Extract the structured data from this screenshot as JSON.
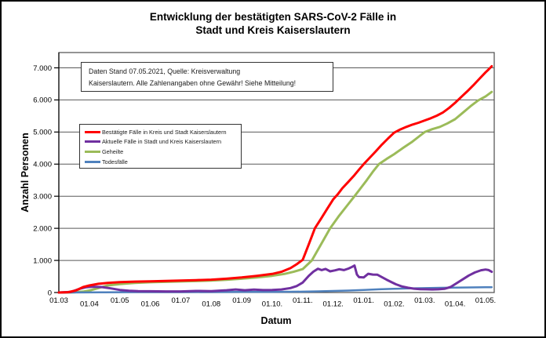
{
  "title": {
    "line1": "Entwicklung der bestätigten SARS-CoV-2 Fälle in",
    "line2": "Stadt und Kreis Kaiserslautern"
  },
  "annotation": {
    "line1": "Daten Stand 07.05.2021, Quelle: Kreisverwaltung",
    "line2": "Kaiserslautern. Alle Zahlenangaben ohne Gewähr! Siehe Mitteilung!"
  },
  "chart_data": {
    "type": "line",
    "title": "Entwicklung der bestätigten SARS-CoV-2 Fälle in Stadt und Kreis Kaiserslautern",
    "xlabel": "Datum",
    "ylabel": "Anzahl Personen",
    "x_unit": "months since 01.03.2020 (0 = 01.03.2020, 14 = 01.05.2021, data ends 07.05.2021)",
    "x_ticks": [
      "01.03",
      "01.04",
      "01.05",
      "01.06",
      "01.07",
      "01.08",
      "01.09",
      "01.10.",
      "01.11.",
      "01.12.",
      "01.01.",
      "01.02.",
      "01.03.",
      "01.04.",
      "01.05."
    ],
    "y_ticks": {
      "labels": [
        "0",
        "1.000",
        "2.000",
        "3.000",
        "4.000",
        "5.000",
        "6.000",
        "7.000"
      ],
      "values": [
        0,
        1000,
        2000,
        3000,
        4000,
        5000,
        6000,
        7000
      ]
    },
    "ylim": [
      0,
      7500
    ],
    "grid": "horizontal",
    "legend_position": "inside-top-left",
    "colors": {
      "grid": "#595959",
      "border": "#4d4d4d",
      "axis": "#000000"
    },
    "series": [
      {
        "key": "bestaetigte-faelle",
        "name": "Bestätigte Fälle in Kreis und Stadt Kaiserslautern",
        "color": "#ff0000",
        "width": 3,
        "z": 4,
        "points": [
          [
            0,
            0
          ],
          [
            0.3,
            10
          ],
          [
            0.55,
            60
          ],
          [
            0.8,
            170
          ],
          [
            1,
            220
          ],
          [
            1.3,
            270
          ],
          [
            1.6,
            300
          ],
          [
            2,
            325
          ],
          [
            2.5,
            340
          ],
          [
            3,
            350
          ],
          [
            3.5,
            362
          ],
          [
            4,
            372
          ],
          [
            4.5,
            385
          ],
          [
            5,
            400
          ],
          [
            5.5,
            430
          ],
          [
            6,
            470
          ],
          [
            6.5,
            520
          ],
          [
            7,
            580
          ],
          [
            7.3,
            645
          ],
          [
            7.6,
            760
          ],
          [
            7.8,
            880
          ],
          [
            8,
            1020
          ],
          [
            8.2,
            1500
          ],
          [
            8.4,
            2000
          ],
          [
            8.6,
            2300
          ],
          [
            8.8,
            2600
          ],
          [
            9,
            2900
          ],
          [
            9.15,
            3060
          ],
          [
            9.3,
            3250
          ],
          [
            9.5,
            3450
          ],
          [
            9.7,
            3660
          ],
          [
            9.85,
            3830
          ],
          [
            10,
            4000
          ],
          [
            10.2,
            4200
          ],
          [
            10.4,
            4400
          ],
          [
            10.6,
            4610
          ],
          [
            10.8,
            4800
          ],
          [
            11,
            4980
          ],
          [
            11.2,
            5080
          ],
          [
            11.4,
            5160
          ],
          [
            11.6,
            5230
          ],
          [
            11.8,
            5290
          ],
          [
            12,
            5360
          ],
          [
            12.2,
            5430
          ],
          [
            12.4,
            5510
          ],
          [
            12.6,
            5610
          ],
          [
            12.8,
            5750
          ],
          [
            13,
            5910
          ],
          [
            13.2,
            6090
          ],
          [
            13.4,
            6270
          ],
          [
            13.6,
            6460
          ],
          [
            13.8,
            6660
          ],
          [
            14,
            6860
          ],
          [
            14.1,
            6950
          ],
          [
            14.2,
            7050
          ]
        ]
      },
      {
        "key": "aktuelle-faelle",
        "name": "Aktuelle Fälle in Stadt und Kreis Kaiserslautern",
        "color": "#7030a0",
        "width": 3,
        "z": 3,
        "points": [
          [
            0,
            0
          ],
          [
            0.4,
            20
          ],
          [
            0.7,
            120
          ],
          [
            0.9,
            165
          ],
          [
            1.1,
            180
          ],
          [
            1.4,
            170
          ],
          [
            1.7,
            130
          ],
          [
            2,
            80
          ],
          [
            2.3,
            55
          ],
          [
            2.6,
            45
          ],
          [
            3,
            40
          ],
          [
            3.5,
            35
          ],
          [
            4,
            35
          ],
          [
            4.5,
            50
          ],
          [
            5,
            45
          ],
          [
            5.5,
            70
          ],
          [
            5.8,
            95
          ],
          [
            6.1,
            70
          ],
          [
            6.4,
            90
          ],
          [
            6.7,
            75
          ],
          [
            7,
            80
          ],
          [
            7.3,
            95
          ],
          [
            7.6,
            140
          ],
          [
            7.8,
            200
          ],
          [
            8,
            310
          ],
          [
            8.2,
            520
          ],
          [
            8.35,
            650
          ],
          [
            8.5,
            740
          ],
          [
            8.62,
            700
          ],
          [
            8.75,
            735
          ],
          [
            8.9,
            660
          ],
          [
            9.05,
            690
          ],
          [
            9.2,
            725
          ],
          [
            9.35,
            700
          ],
          [
            9.5,
            745
          ],
          [
            9.62,
            800
          ],
          [
            9.7,
            840
          ],
          [
            9.78,
            560
          ],
          [
            9.85,
            480
          ],
          [
            10,
            470
          ],
          [
            10.15,
            585
          ],
          [
            10.3,
            560
          ],
          [
            10.45,
            555
          ],
          [
            10.6,
            480
          ],
          [
            10.75,
            400
          ],
          [
            10.9,
            330
          ],
          [
            11.05,
            260
          ],
          [
            11.25,
            190
          ],
          [
            11.45,
            150
          ],
          [
            11.65,
            120
          ],
          [
            11.85,
            105
          ],
          [
            12.05,
            100
          ],
          [
            12.25,
            95
          ],
          [
            12.45,
            100
          ],
          [
            12.65,
            115
          ],
          [
            12.85,
            170
          ],
          [
            13.05,
            290
          ],
          [
            13.25,
            410
          ],
          [
            13.45,
            530
          ],
          [
            13.65,
            625
          ],
          [
            13.85,
            695
          ],
          [
            14,
            715
          ],
          [
            14.1,
            700
          ],
          [
            14.2,
            645
          ]
        ]
      },
      {
        "key": "geheilte",
        "name": "Geheilte",
        "color": "#9bbb59",
        "width": 3,
        "z": 1,
        "points": [
          [
            0,
            0
          ],
          [
            0.5,
            5
          ],
          [
            0.8,
            30
          ],
          [
            1,
            60
          ],
          [
            1.3,
            140
          ],
          [
            1.6,
            220
          ],
          [
            2,
            265
          ],
          [
            2.5,
            300
          ],
          [
            3,
            320
          ],
          [
            3.5,
            332
          ],
          [
            4,
            345
          ],
          [
            4.5,
            357
          ],
          [
            5,
            372
          ],
          [
            5.5,
            395
          ],
          [
            6,
            430
          ],
          [
            6.5,
            472
          ],
          [
            7,
            520
          ],
          [
            7.4,
            580
          ],
          [
            7.7,
            645
          ],
          [
            8,
            730
          ],
          [
            8.3,
            1000
          ],
          [
            8.6,
            1500
          ],
          [
            8.9,
            2000
          ],
          [
            9.2,
            2400
          ],
          [
            9.45,
            2700
          ],
          [
            9.7,
            3000
          ],
          [
            9.9,
            3250
          ],
          [
            10.1,
            3500
          ],
          [
            10.3,
            3760
          ],
          [
            10.5,
            4000
          ],
          [
            10.75,
            4160
          ],
          [
            11,
            4310
          ],
          [
            11.3,
            4510
          ],
          [
            11.6,
            4700
          ],
          [
            11.8,
            4850
          ],
          [
            12,
            5000
          ],
          [
            12.25,
            5090
          ],
          [
            12.5,
            5160
          ],
          [
            12.75,
            5270
          ],
          [
            13,
            5400
          ],
          [
            13.25,
            5600
          ],
          [
            13.5,
            5800
          ],
          [
            13.75,
            5980
          ],
          [
            14,
            6110
          ],
          [
            14.2,
            6250
          ]
        ]
      },
      {
        "key": "todesfaelle",
        "name": "Todesfälle",
        "color": "#4f81bd",
        "width": 2.5,
        "z": 2,
        "points": [
          [
            0,
            0
          ],
          [
            0.8,
            3
          ],
          [
            1.5,
            8
          ],
          [
            2.5,
            12
          ],
          [
            4,
            13
          ],
          [
            6,
            16
          ],
          [
            7,
            20
          ],
          [
            8,
            26
          ],
          [
            8.5,
            36
          ],
          [
            9,
            48
          ],
          [
            9.5,
            62
          ],
          [
            10,
            80
          ],
          [
            10.5,
            100
          ],
          [
            11,
            116
          ],
          [
            11.5,
            128
          ],
          [
            12,
            138
          ],
          [
            12.5,
            147
          ],
          [
            13,
            153
          ],
          [
            13.5,
            158
          ],
          [
            14,
            163
          ],
          [
            14.2,
            166
          ]
        ]
      }
    ]
  }
}
